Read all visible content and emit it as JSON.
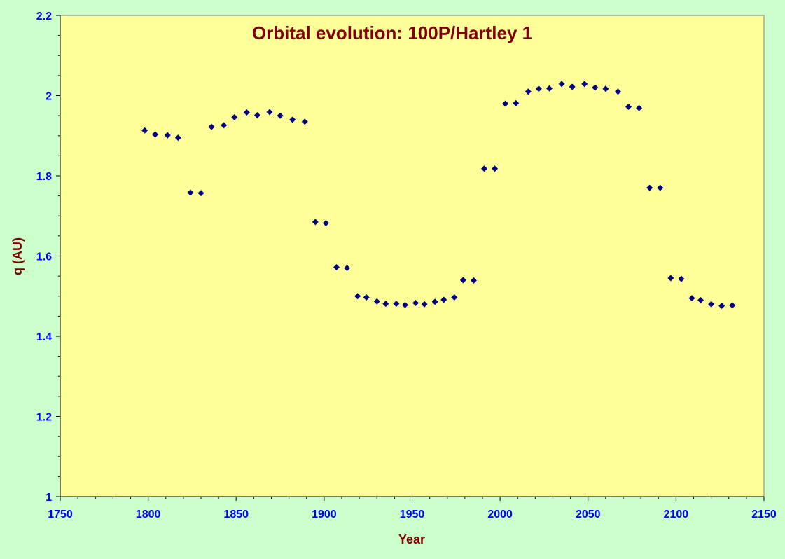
{
  "colors": {
    "background": "#ccffcc",
    "plot_area": "#ffff99",
    "marker": "#000080",
    "title": "#800000",
    "tick_labels": "#0000ff",
    "axis": "#000000"
  },
  "chart_data": {
    "type": "scatter",
    "title": "Orbital evolution: 100P/Hartley 1",
    "xlabel": "Year",
    "ylabel": "q (AU)",
    "xlim": [
      1750,
      2150
    ],
    "ylim": [
      1,
      2.2
    ],
    "x_ticks": [
      "1750",
      "1800",
      "1850",
      "1900",
      "1950",
      "2000",
      "2050",
      "2100",
      "2150"
    ],
    "y_ticks": [
      "1",
      "1.2",
      "1.4",
      "1.6",
      "1.8",
      "2",
      "2.2"
    ],
    "grid": false,
    "legend": "none",
    "marker": "diamond",
    "series": [
      {
        "points": [
          [
            1798,
            1.913
          ],
          [
            1804,
            1.903
          ],
          [
            1811,
            1.901
          ],
          [
            1817,
            1.895
          ],
          [
            1824,
            1.758
          ],
          [
            1830,
            1.757
          ],
          [
            1836,
            1.922
          ],
          [
            1843,
            1.926
          ],
          [
            1849,
            1.946
          ],
          [
            1856,
            1.958
          ],
          [
            1862,
            1.951
          ],
          [
            1869,
            1.959
          ],
          [
            1875,
            1.95
          ],
          [
            1882,
            1.94
          ],
          [
            1889,
            1.935
          ],
          [
            1895,
            1.685
          ],
          [
            1901,
            1.682
          ],
          [
            1907,
            1.572
          ],
          [
            1913,
            1.57
          ],
          [
            1919,
            1.5
          ],
          [
            1924,
            1.497
          ],
          [
            1930,
            1.487
          ],
          [
            1935,
            1.481
          ],
          [
            1941,
            1.481
          ],
          [
            1946,
            1.478
          ],
          [
            1952,
            1.483
          ],
          [
            1957,
            1.48
          ],
          [
            1963,
            1.486
          ],
          [
            1968,
            1.491
          ],
          [
            1974,
            1.497
          ],
          [
            1979,
            1.54
          ],
          [
            1985,
            1.539
          ],
          [
            1991,
            1.818
          ],
          [
            1997,
            1.818
          ],
          [
            2003,
            1.98
          ],
          [
            2009,
            1.981
          ],
          [
            2016,
            2.01
          ],
          [
            2022,
            2.017
          ],
          [
            2028,
            2.018
          ],
          [
            2035,
            2.029
          ],
          [
            2041,
            2.022
          ],
          [
            2048,
            2.029
          ],
          [
            2054,
            2.02
          ],
          [
            2060,
            2.017
          ],
          [
            2067,
            2.01
          ],
          [
            2073,
            1.972
          ],
          [
            2079,
            1.969
          ],
          [
            2085,
            1.77
          ],
          [
            2091,
            1.77
          ],
          [
            2097,
            1.545
          ],
          [
            2103,
            1.543
          ],
          [
            2109,
            1.495
          ],
          [
            2114,
            1.49
          ],
          [
            2120,
            1.48
          ],
          [
            2126,
            1.476
          ],
          [
            2132,
            1.477
          ]
        ]
      }
    ]
  }
}
